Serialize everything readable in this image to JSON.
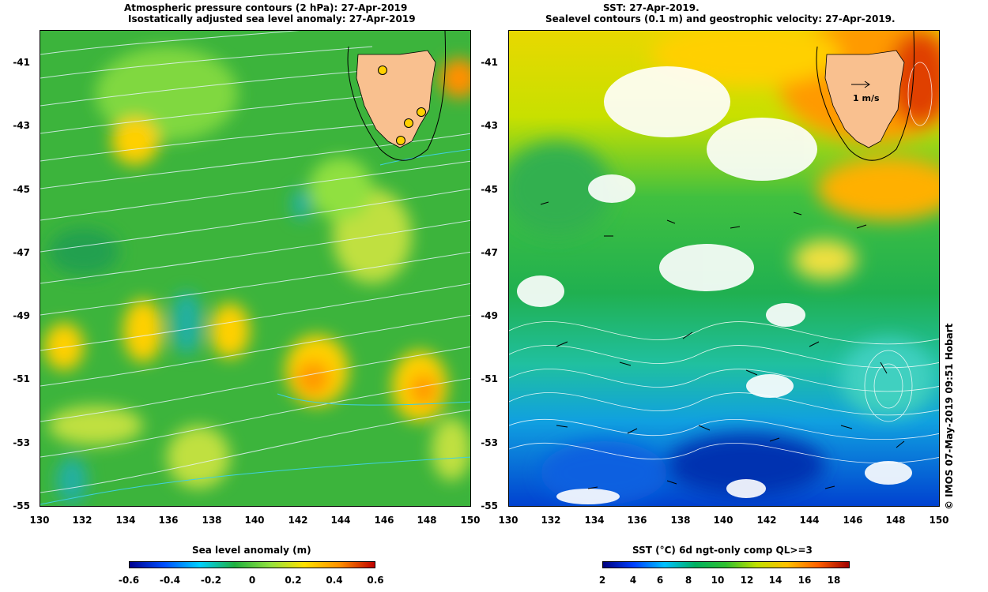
{
  "left_panel": {
    "title_line1": "Atmospheric pressure contours (2 hPa): 27-Apr-2019",
    "title_line2": "Isostatically adjusted sea level anomaly: 27-Apr-2019",
    "colorbar_title": "Sea level anomaly (m)",
    "colorbar_ticks": [
      "-0.6",
      "-0.4",
      "-0.2",
      "0",
      "0.2",
      "0.4",
      "0.6"
    ]
  },
  "right_panel": {
    "title_line1": "SST: 27-Apr-2019.",
    "title_line2": "Sealevel contours (0.1 m) and geostrophic velocity: 27-Apr-2019.",
    "velocity_scale_label": "1 m/s",
    "colorbar_title": "SST (°C) 6d ngt-only comp QL>=3",
    "colorbar_ticks": [
      "2",
      "4",
      "6",
      "8",
      "10",
      "12",
      "14",
      "16",
      "18"
    ]
  },
  "axes": {
    "y_ticks": [
      "-41",
      "-43",
      "-45",
      "-47",
      "-49",
      "-51",
      "-53",
      "-55"
    ],
    "x_ticks": [
      "130",
      "132",
      "134",
      "136",
      "138",
      "140",
      "142",
      "144",
      "146",
      "148",
      "150"
    ]
  },
  "credit": "© IMOS 07-May-2019 09:51 Hobart",
  "colors": {
    "land": "#f9c08f",
    "sla_scale": [
      "#00008f",
      "#0050ff",
      "#00d0ff",
      "#20b040",
      "#90e040",
      "#ffe000",
      "#ff9000",
      "#c00000"
    ],
    "sst_scale": [
      "#00007f",
      "#0040ff",
      "#00c0ff",
      "#00b060",
      "#30c030",
      "#c0e000",
      "#ffc000",
      "#ff6000",
      "#a00000"
    ]
  },
  "map_data": {
    "region_longitude": [
      130,
      150
    ],
    "region_latitude": [
      -55,
      -40
    ],
    "tide_gauges": [
      {
        "lon": 146.0,
        "lat": -41.25
      },
      {
        "lon": 147.7,
        "lat": -42.6
      },
      {
        "lon": 147.2,
        "lat": -42.9
      },
      {
        "lon": 146.8,
        "lat": -43.5
      }
    ]
  }
}
